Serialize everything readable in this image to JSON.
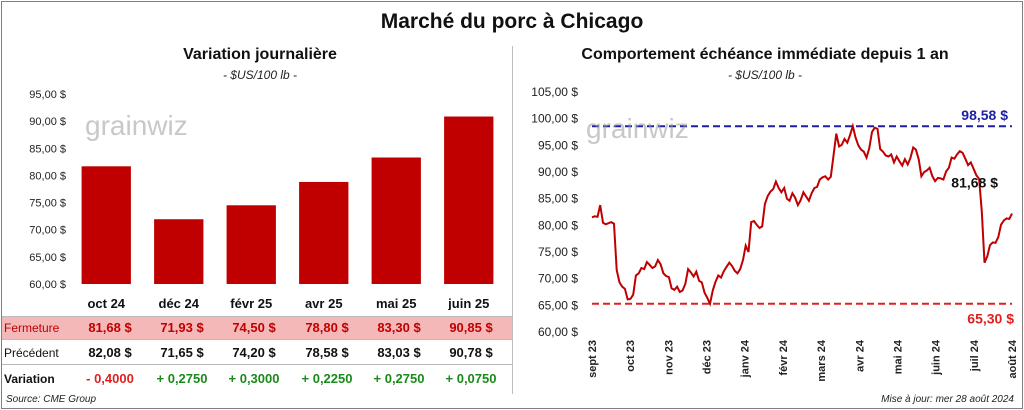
{
  "title": "Marché du porc à Chicago",
  "footer": {
    "source": "Source: CME Group",
    "updated": "Mise à jour: mer 28 août 2024"
  },
  "watermark": "grainwiz",
  "colors": {
    "bar": "#c00000",
    "line": "#c00000",
    "upper_ref": "#1f1fa6",
    "lower_ref": "#e02020",
    "highlight_row": "#f4b8b8",
    "positive": "#1a8a1a",
    "negative": "#e02020"
  },
  "left": {
    "subtitle": "Variation  journalière",
    "units": "- $US/100 lb -",
    "table": {
      "fermeture_label": "Fermeture",
      "precedent_label": "Précédent",
      "variation_label": "Variation",
      "fermeture": [
        "81,68  $",
        "71,93  $",
        "74,50  $",
        "78,80  $",
        "83,30  $",
        "90,85  $"
      ],
      "precedent": [
        "82,08  $",
        "71,65  $",
        "74,20  $",
        "78,58  $",
        "83,03  $",
        "90,78  $"
      ],
      "variation": [
        "- 0,4000",
        "+ 0,2750",
        "+ 0,3000",
        "+ 0,2250",
        "+ 0,2750",
        "+ 0,0750"
      ]
    }
  },
  "right": {
    "subtitle": "Comportement  échéance immédiate depuis 1 an",
    "units": "- $US/100 lb -",
    "high_label": "98,58 $",
    "last_label": "81,68 $",
    "low_label": "65,30 $"
  },
  "chart_data": [
    {
      "type": "bar",
      "categories": [
        "oct 24",
        "déc 24",
        "févr 25",
        "avr 25",
        "mai 25",
        "juin 25"
      ],
      "values": [
        81.68,
        71.93,
        74.5,
        78.8,
        83.3,
        90.85
      ],
      "ylim": [
        60,
        95
      ],
      "yticks": [
        "60,00 $",
        "65,00 $",
        "70,00 $",
        "75,00 $",
        "80,00 $",
        "85,00 $",
        "90,00 $",
        "95,00 $"
      ],
      "grid": false
    },
    {
      "type": "line",
      "x_ticks": [
        "sept 23",
        "oct 23",
        "nov 23",
        "déc 23",
        "janv 24",
        "févr 24",
        "mars 24",
        "avr 24",
        "mai 24",
        "juin 24",
        "juil 24",
        "août 24"
      ],
      "y": [
        81.5,
        81.7,
        81.6,
        83.8,
        80.5,
        80.2,
        80.4,
        80.6,
        80.3,
        71.6,
        69.3,
        68.5,
        68.1,
        66.1,
        66.2,
        67.0,
        70.6,
        71.0,
        72.0,
        71.8,
        73.1,
        72.6,
        72.0,
        72.3,
        73.5,
        72.7,
        71.0,
        70.5,
        70.3,
        68.2,
        67.9,
        68.5,
        67.5,
        67.8,
        69.0,
        71.8,
        71.2,
        70.4,
        71.3,
        69.6,
        69.3,
        67.4,
        66.4,
        65.3,
        67.8,
        69.4,
        70.6,
        70.2,
        71.4,
        72.2,
        73.0,
        72.4,
        71.5,
        71.0,
        71.8,
        73.5,
        76.2,
        75.0,
        80.6,
        80.8,
        80.1,
        79.5,
        79.8,
        84.0,
        85.5,
        86.3,
        86.8,
        88.2,
        87.0,
        86.2,
        87.0,
        85.0,
        84.6,
        86.0,
        85.2,
        83.8,
        84.7,
        86.2,
        85.4,
        84.6,
        86.0,
        87.0,
        87.2,
        88.6,
        89.0,
        89.2,
        88.6,
        89.1,
        93.2,
        97.2,
        94.8,
        95.1,
        96.2,
        95.5,
        96.9,
        98.6,
        96.5,
        95.0,
        94.2,
        93.8,
        92.7,
        94.5,
        97.5,
        98.3,
        98.1,
        94.3,
        93.8,
        93.1,
        92.9,
        93.3,
        91.8,
        92.9,
        92.0,
        91.2,
        92.4,
        91.4,
        92.6,
        94.6,
        94.2,
        92.4,
        89.2,
        90.0,
        90.3,
        90.8,
        89.2,
        88.3,
        88.9,
        88.8,
        88.6,
        90.1,
        90.8,
        92.7,
        92.5,
        93.3,
        93.9,
        93.6,
        92.5,
        91.3,
        91.8,
        90.6,
        89.4,
        88.7,
        82.6,
        73.0,
        74.2,
        76.3,
        76.8,
        76.7,
        77.8,
        80.1,
        80.9,
        81.3,
        81.2,
        82.2
      ],
      "ylim": [
        60,
        105
      ],
      "yticks": [
        "60,00 $",
        "65,00 $",
        "70,00 $",
        "75,00 $",
        "80,00 $",
        "85,00 $",
        "90,00 $",
        "95,00 $",
        "100,00 $",
        "105,00 $"
      ],
      "reference_lines": [
        98.58,
        65.3
      ],
      "grid": false
    }
  ]
}
